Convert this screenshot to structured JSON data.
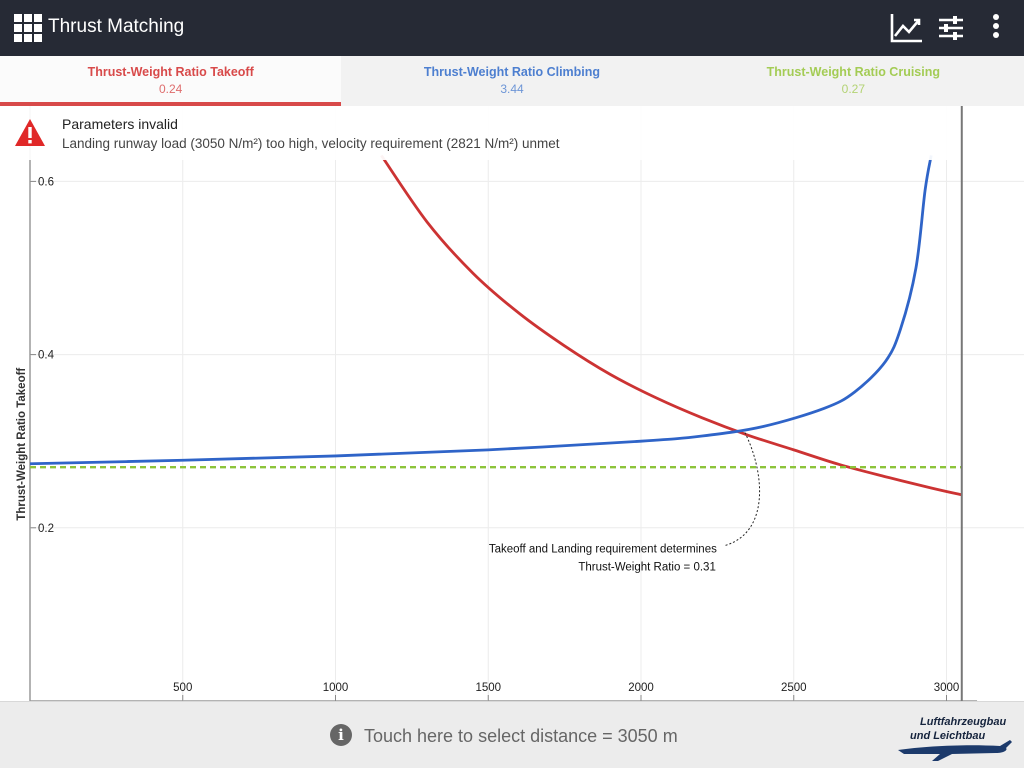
{
  "app": {
    "title": "Thrust Matching"
  },
  "toolbar": {
    "icons": [
      "chart-icon",
      "tune-sliders-icon",
      "more-vert-icon"
    ]
  },
  "tabs": [
    {
      "label": "Thrust-Weight Ratio Takeoff",
      "value": "0.24",
      "color": "#d84a4a",
      "active": true
    },
    {
      "label": "Thrust-Weight Ratio Climbing",
      "value": "3.44",
      "color": "#4d7fd0",
      "active": false
    },
    {
      "label": "Thrust-Weight Ratio Cruising",
      "value": "0.27",
      "color": "#a4cc55",
      "active": false
    }
  ],
  "warning": {
    "title": "Parameters invalid",
    "message": "Landing runway load (3050 N/m²) too high, velocity requirement (2821 N/m²) unmet",
    "icon": "warning-icon",
    "color": "#e02828"
  },
  "chart_data": {
    "type": "line",
    "ylabel": "Thrust-Weight Ratio Takeoff",
    "xlabel": "",
    "xlim": [
      0,
      3100
    ],
    "ylim": [
      0,
      0.63
    ],
    "xticks": [
      500,
      1000,
      1500,
      2000,
      2500,
      3000
    ],
    "yticks": [
      0.2,
      0.4,
      0.6
    ],
    "grid": true,
    "series": [
      {
        "key": "takeoff",
        "color": "#cc3333",
        "x": [
          1150,
          1300,
          1450,
          1600,
          1750,
          1900,
          2050,
          2200,
          2350,
          2500,
          2650,
          2800,
          2950,
          3050
        ],
        "y": [
          0.63,
          0.553,
          0.494,
          0.448,
          0.41,
          0.377,
          0.35,
          0.327,
          0.307,
          0.29,
          0.273,
          0.259,
          0.246,
          0.238
        ]
      },
      {
        "key": "climbing",
        "color": "#2f64c8",
        "x": [
          0,
          500,
          1000,
          1500,
          2000,
          2200,
          2400,
          2600,
          2700,
          2800,
          2850,
          2900,
          2930,
          2950
        ],
        "y": [
          0.274,
          0.278,
          0.283,
          0.29,
          0.3,
          0.306,
          0.317,
          0.338,
          0.357,
          0.392,
          0.43,
          0.5,
          0.59,
          0.63
        ]
      },
      {
        "key": "cruising",
        "color": "#8cc43a",
        "dashed": true,
        "x": [
          0,
          3050
        ],
        "y": [
          0.27,
          0.27
        ]
      }
    ],
    "selected_distance": 3050,
    "annotation": {
      "line1": "Takeoff and Landing requirement determines",
      "line2": "Thrust-Weight Ratio = 0.31",
      "point": [
        2340,
        0.31
      ]
    }
  },
  "bottom": {
    "info_icon": "info-icon",
    "select_text": "Touch here to select distance = 3050 m"
  },
  "logo": {
    "line1": "Luftfahrzeugbau",
    "line2": "und Leichtbau",
    "icon": "airplane-logo"
  }
}
